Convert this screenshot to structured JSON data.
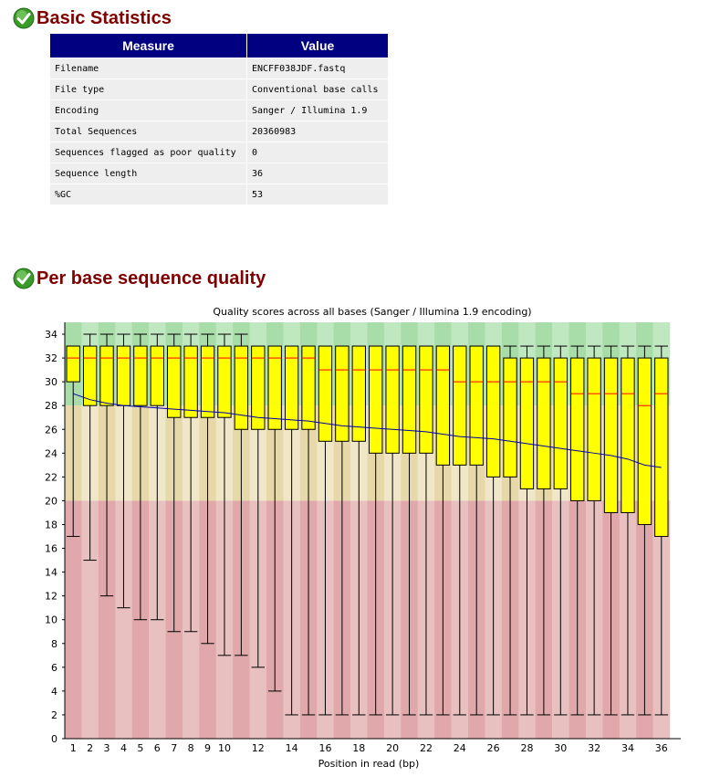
{
  "basic_statistics": {
    "title": "Basic Statistics",
    "status_icon": "check-icon",
    "headers": [
      "Measure",
      "Value"
    ],
    "rows": [
      [
        "Filename",
        "ENCFF038JDF.fastq"
      ],
      [
        "File type",
        "Conventional base calls"
      ],
      [
        "Encoding",
        "Sanger / Illumina 1.9"
      ],
      [
        "Total Sequences",
        "20360983"
      ],
      [
        "Sequences flagged as poor quality",
        "0"
      ],
      [
        "Sequence length",
        "36"
      ],
      [
        "%GC",
        "53"
      ]
    ]
  },
  "per_base_quality": {
    "title": "Per base sequence quality",
    "status_icon": "check-icon"
  },
  "colors": {
    "section_title": "#800000",
    "table_header": "#000080",
    "good_zone": "#c0e8c0",
    "ok_zone": "#f0e6c8",
    "bad_zone": "#e8c0c0",
    "box_fill": "#ffff00",
    "median_line": "#ff0000",
    "mean_line": "#0000aa"
  },
  "chart_data": {
    "type": "box",
    "title": "Quality scores across all bases (Sanger / Illumina 1.9 encoding)",
    "xlabel": "Position in read (bp)",
    "ylabel": "",
    "ylim": [
      0,
      35
    ],
    "yticks": [
      0,
      2,
      4,
      6,
      8,
      10,
      12,
      14,
      16,
      18,
      20,
      22,
      24,
      26,
      28,
      30,
      32,
      34
    ],
    "x_tick_labels": [
      "1",
      "2",
      "3",
      "4",
      "5",
      "6",
      "7",
      "8",
      "9",
      "10",
      "12",
      "14",
      "16",
      "18",
      "20",
      "22",
      "24",
      "26",
      "28",
      "30",
      "32",
      "34",
      "36"
    ],
    "zones": [
      {
        "name": "good",
        "from": 28,
        "to": 35
      },
      {
        "name": "ok",
        "from": 20,
        "to": 28
      },
      {
        "name": "bad",
        "from": 0,
        "to": 20
      }
    ],
    "positions": [
      1,
      2,
      3,
      4,
      5,
      6,
      7,
      8,
      9,
      10,
      11,
      12,
      13,
      14,
      15,
      16,
      17,
      18,
      19,
      20,
      21,
      22,
      23,
      24,
      25,
      26,
      27,
      28,
      29,
      30,
      31,
      32,
      33,
      34,
      35,
      36
    ],
    "median": [
      32,
      32,
      32,
      32,
      32,
      32,
      32,
      32,
      32,
      32,
      32,
      32,
      32,
      32,
      32,
      31,
      31,
      31,
      31,
      31,
      31,
      31,
      31,
      30,
      30,
      30,
      30,
      30,
      30,
      30,
      29,
      29,
      29,
      29,
      28,
      29
    ],
    "q1": [
      30,
      28,
      28,
      28,
      28,
      28,
      27,
      27,
      27,
      27,
      26,
      26,
      26,
      26,
      26,
      25,
      25,
      25,
      24,
      24,
      24,
      24,
      23,
      23,
      23,
      22,
      22,
      21,
      21,
      21,
      20,
      20,
      19,
      19,
      18,
      17
    ],
    "q3": [
      33,
      33,
      33,
      33,
      33,
      33,
      33,
      33,
      33,
      33,
      33,
      33,
      33,
      33,
      33,
      33,
      33,
      33,
      33,
      33,
      33,
      33,
      33,
      33,
      33,
      33,
      32,
      32,
      32,
      32,
      32,
      32,
      32,
      32,
      32,
      32
    ],
    "lower_whisker": [
      17,
      15,
      12,
      11,
      10,
      10,
      9,
      9,
      8,
      7,
      7,
      6,
      4,
      2,
      2,
      2,
      2,
      2,
      2,
      2,
      2,
      2,
      2,
      2,
      2,
      2,
      2,
      2,
      2,
      2,
      2,
      2,
      2,
      2,
      2,
      2
    ],
    "upper_whisker": [
      33,
      34,
      34,
      34,
      34,
      34,
      34,
      34,
      34,
      34,
      34,
      33,
      33,
      33,
      33,
      33,
      33,
      33,
      33,
      33,
      33,
      33,
      33,
      33,
      33,
      33,
      33,
      33,
      33,
      33,
      33,
      33,
      33,
      33,
      33,
      33
    ],
    "mean": [
      29.0,
      28.5,
      28.2,
      28.0,
      27.9,
      27.8,
      27.7,
      27.6,
      27.5,
      27.4,
      27.2,
      27.0,
      26.9,
      26.8,
      26.7,
      26.5,
      26.3,
      26.2,
      26.1,
      26.0,
      25.9,
      25.8,
      25.6,
      25.4,
      25.3,
      25.2,
      25.0,
      24.8,
      24.6,
      24.4,
      24.2,
      24.0,
      23.8,
      23.5,
      23.0,
      22.8
    ]
  }
}
